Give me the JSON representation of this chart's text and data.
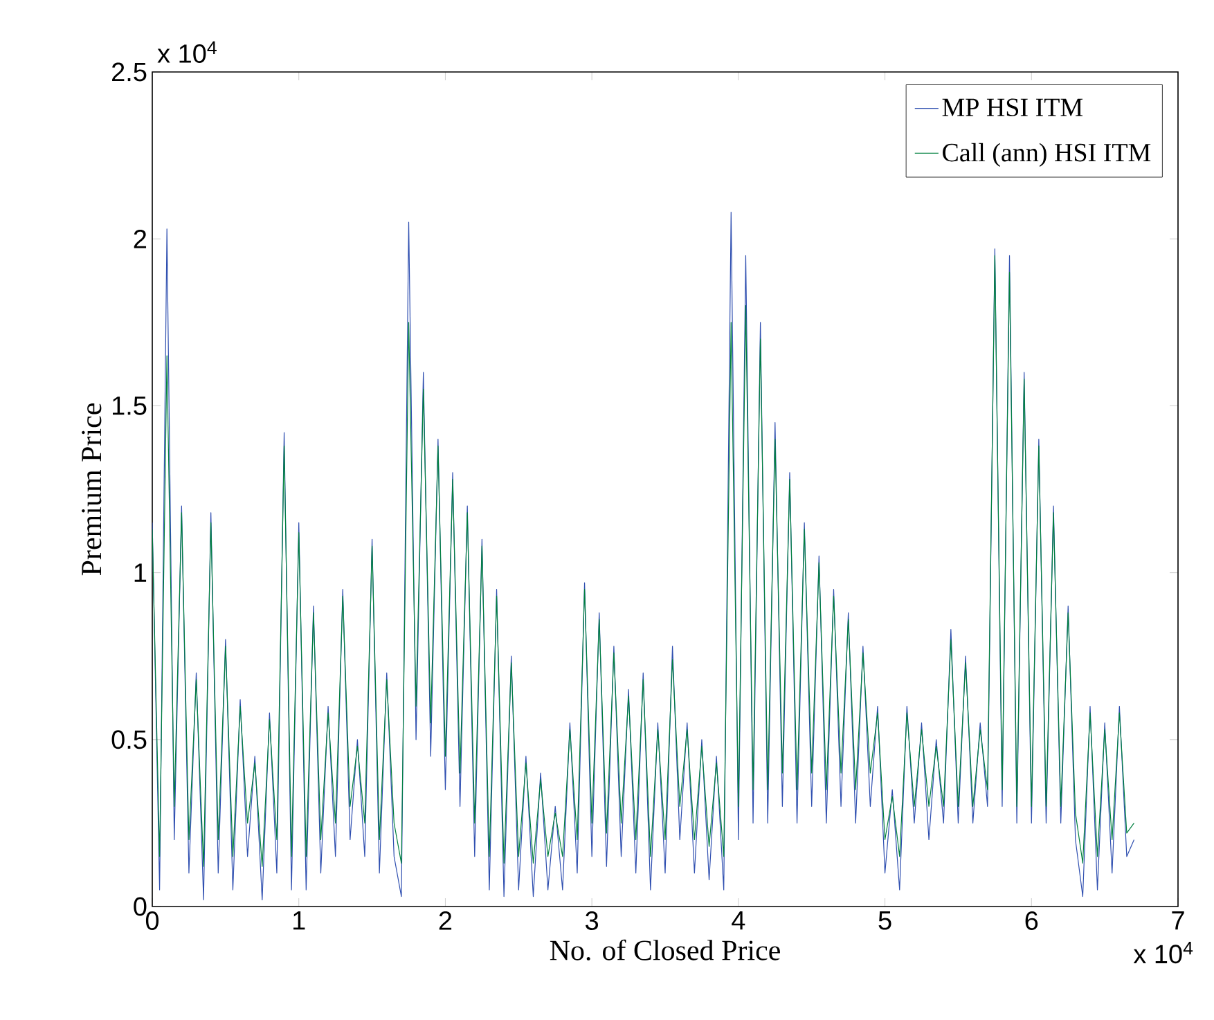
{
  "chart_data": {
    "type": "line",
    "xlabel": "No. of Closed Price",
    "ylabel": "Premium Price",
    "annotations": [
      "x 10$^{4}$",
      "x 10$^{4}$"
    ],
    "xlim": [
      0,
      7
    ],
    "ylim": [
      0,
      2.5
    ],
    "xticks": [
      0,
      1,
      2,
      3,
      4,
      5,
      6,
      7
    ],
    "yticks": [
      0,
      0.5,
      1,
      1.5,
      2,
      2.5
    ],
    "legend": "top right",
    "marker": "none",
    "line_style": "solid",
    "x": [
      0,
      0.05,
      0.1,
      0.15,
      0.2,
      0.25,
      0.3,
      0.35,
      0.4,
      0.45,
      0.5,
      0.55,
      0.6,
      0.65,
      0.7,
      0.75,
      0.8,
      0.85,
      0.9,
      0.95,
      1,
      1.05,
      1.1,
      1.15,
      1.2,
      1.25,
      1.3,
      1.35,
      1.4,
      1.45,
      1.5,
      1.55,
      1.6,
      1.65,
      1.7,
      1.75,
      1.8,
      1.85,
      1.9,
      1.95,
      2,
      2.05,
      2.1,
      2.15,
      2.2,
      2.25,
      2.3,
      2.35,
      2.4,
      2.45,
      2.5,
      2.55,
      2.6,
      2.65,
      2.7,
      2.75,
      2.8,
      2.85,
      2.9,
      2.95,
      3,
      3.05,
      3.1,
      3.15,
      3.2,
      3.25,
      3.3,
      3.35,
      3.4,
      3.45,
      3.5,
      3.55,
      3.6,
      3.65,
      3.7,
      3.75,
      3.8,
      3.85,
      3.9,
      3.95,
      4,
      4.05,
      4.1,
      4.15,
      4.2,
      4.25,
      4.3,
      4.35,
      4.4,
      4.45,
      4.5,
      4.55,
      4.6,
      4.65,
      4.7,
      4.75,
      4.8,
      4.85,
      4.9,
      4.95,
      5,
      5.05,
      5.1,
      5.15,
      5.2,
      5.25,
      5.3,
      5.35,
      5.4,
      5.45,
      5.5,
      5.55,
      5.6,
      5.65,
      5.7,
      5.75,
      5.8,
      5.85,
      5.9,
      5.95,
      6,
      6.05,
      6.1,
      6.15,
      6.2,
      6.25,
      6.3,
      6.35,
      6.4,
      6.45,
      6.5,
      6.55,
      6.6,
      6.65,
      6.7
    ],
    "series": [
      {
        "name": "MP HSI ITM",
        "color": "#2f4fb0",
        "values": [
          1.15,
          0.05,
          2.03,
          0.2,
          1.2,
          0.1,
          0.7,
          0.02,
          1.18,
          0.1,
          0.8,
          0.05,
          0.62,
          0.15,
          0.45,
          0.02,
          0.58,
          0.1,
          1.42,
          0.05,
          1.15,
          0.05,
          0.9,
          0.1,
          0.6,
          0.15,
          0.95,
          0.2,
          0.5,
          0.15,
          1.1,
          0.1,
          0.7,
          0.15,
          0.03,
          2.05,
          0.5,
          1.6,
          0.45,
          1.4,
          0.35,
          1.3,
          0.3,
          1.2,
          0.15,
          1.1,
          0.05,
          0.95,
          0.03,
          0.75,
          0.05,
          0.45,
          0.03,
          0.4,
          0.05,
          0.3,
          0.05,
          0.55,
          0.1,
          0.97,
          0.15,
          0.88,
          0.12,
          0.78,
          0.15,
          0.65,
          0.1,
          0.7,
          0.05,
          0.55,
          0.1,
          0.78,
          0.2,
          0.55,
          0.1,
          0.5,
          0.08,
          0.45,
          0.05,
          2.08,
          0.2,
          1.95,
          0.25,
          1.75,
          0.25,
          1.45,
          0.3,
          1.3,
          0.25,
          1.15,
          0.3,
          1.05,
          0.25,
          0.95,
          0.3,
          0.88,
          0.25,
          0.78,
          0.3,
          0.6,
          0.1,
          0.35,
          0.05,
          0.6,
          0.25,
          0.55,
          0.2,
          0.5,
          0.25,
          0.83,
          0.25,
          0.75,
          0.25,
          0.55,
          0.3,
          1.97,
          0.3,
          1.95,
          0.25,
          1.6,
          0.25,
          1.4,
          0.25,
          1.2,
          0.25,
          0.9,
          0.2,
          0.03,
          0.6,
          0.05,
          0.55,
          0.1,
          0.6,
          0.15,
          0.2
        ]
      },
      {
        "name": "Call (ann) HSI ITM",
        "color": "#00803f",
        "values": [
          1.13,
          0.15,
          1.65,
          0.3,
          1.18,
          0.2,
          0.68,
          0.12,
          1.15,
          0.2,
          0.78,
          0.15,
          0.6,
          0.25,
          0.43,
          0.12,
          0.56,
          0.2,
          1.38,
          0.15,
          1.12,
          0.15,
          0.88,
          0.2,
          0.58,
          0.25,
          0.93,
          0.3,
          0.48,
          0.25,
          1.08,
          0.2,
          0.68,
          0.25,
          0.13,
          1.75,
          0.6,
          1.55,
          0.55,
          1.38,
          0.45,
          1.28,
          0.4,
          1.18,
          0.25,
          1.08,
          0.15,
          0.93,
          0.13,
          0.73,
          0.15,
          0.43,
          0.13,
          0.38,
          0.15,
          0.28,
          0.15,
          0.53,
          0.2,
          0.95,
          0.25,
          0.86,
          0.22,
          0.76,
          0.25,
          0.63,
          0.2,
          0.68,
          0.15,
          0.53,
          0.2,
          0.74,
          0.3,
          0.53,
          0.2,
          0.48,
          0.18,
          0.43,
          0.15,
          1.75,
          0.3,
          1.8,
          0.35,
          1.7,
          0.35,
          1.4,
          0.4,
          1.28,
          0.35,
          1.13,
          0.4,
          1.03,
          0.35,
          0.93,
          0.4,
          0.86,
          0.35,
          0.76,
          0.4,
          0.58,
          0.2,
          0.33,
          0.15,
          0.58,
          0.3,
          0.53,
          0.3,
          0.48,
          0.3,
          0.8,
          0.3,
          0.73,
          0.3,
          0.53,
          0.35,
          1.95,
          0.35,
          1.9,
          0.3,
          1.58,
          0.3,
          1.38,
          0.3,
          1.18,
          0.3,
          0.88,
          0.28,
          0.13,
          0.58,
          0.15,
          0.53,
          0.2,
          0.58,
          0.22,
          0.25
        ]
      }
    ]
  }
}
